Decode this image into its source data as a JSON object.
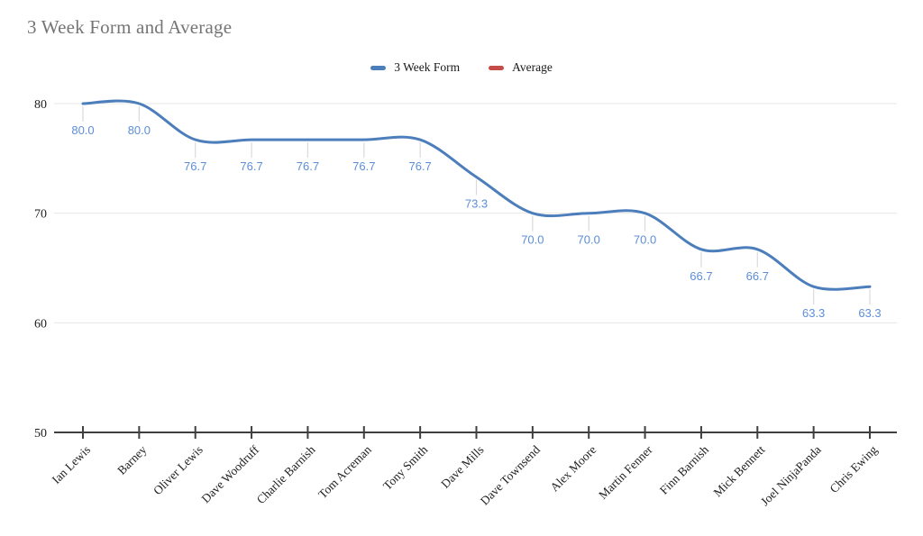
{
  "title": {
    "text": "3 Week Form and Average",
    "color": "#757575"
  },
  "legend": {
    "position": "top",
    "items": [
      {
        "label": "3 Week Form",
        "color": "#4d7ebc"
      },
      {
        "label": "Average",
        "color": "#c54b46"
      }
    ]
  },
  "chart_data": {
    "type": "line",
    "title": "3 Week Form and Average",
    "xlabel": "",
    "ylabel": "",
    "categories": [
      "Ian Lewis",
      "Barney",
      "Oliver Lewis",
      "Dave Woodruff",
      "Charlie Barnish",
      "Tom Acreman",
      "Tony Smith",
      "Dave Mills",
      "Dave Townsend",
      "Alex Moore",
      "Martin Fenner",
      "Finn Barnish",
      "Mick Bennett",
      "Joel NinjaPanda",
      "Chris Ewing"
    ],
    "series": [
      {
        "name": "3 Week Form",
        "color": "#4d7ebc",
        "values": [
          80.0,
          80.0,
          76.7,
          76.7,
          76.7,
          76.7,
          76.7,
          73.3,
          70.0,
          70.0,
          70.0,
          66.7,
          66.7,
          63.3,
          63.3
        ],
        "labels": [
          "80.0",
          "80.0",
          "76.7",
          "76.7",
          "76.7",
          "76.7",
          "76.7",
          "73.3",
          "70.0",
          "70.0",
          "70.0",
          "66.7",
          "66.7",
          "63.3",
          "63.3"
        ]
      },
      {
        "name": "Average",
        "color": "#c54b46",
        "values": [],
        "labels": []
      }
    ],
    "ylim": [
      50,
      80
    ],
    "yticks": [
      50,
      60,
      70,
      80
    ],
    "grid": true,
    "curve": "smooth",
    "legend_position": "top",
    "colors": {
      "grid": "#e7e7e7",
      "axis": "#3f3f3f",
      "stem": "#dadada",
      "annotation": "#5c8ed8",
      "tick_text": "#1d1d1d"
    }
  }
}
